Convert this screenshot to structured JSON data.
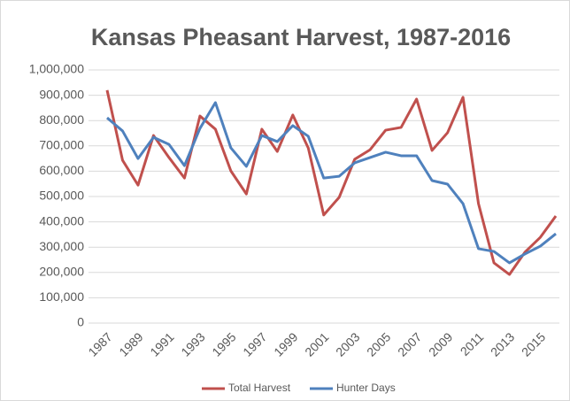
{
  "chart_data": {
    "type": "line",
    "title": "Kansas Pheasant Harvest, 1987-2016",
    "x": [
      1987,
      1988,
      1989,
      1990,
      1991,
      1992,
      1993,
      1994,
      1995,
      1996,
      1997,
      1998,
      1999,
      2000,
      2001,
      2002,
      2003,
      2004,
      2005,
      2006,
      2007,
      2008,
      2009,
      2010,
      2011,
      2012,
      2013,
      2014,
      2015,
      2016
    ],
    "series": [
      {
        "name": "Total Harvest",
        "color": "#c0504d",
        "values": [
          920000,
          643000,
          545000,
          741000,
          654000,
          573000,
          818000,
          766000,
          601000,
          510000,
          766000,
          678000,
          822000,
          692000,
          427000,
          497000,
          647000,
          685000,
          762000,
          773000,
          885000,
          682000,
          752000,
          892000,
          472000,
          238000,
          192000,
          280000,
          339000,
          423000
        ]
      },
      {
        "name": "Hunter Days",
        "color": "#4f81bd",
        "values": [
          811000,
          759000,
          650000,
          734000,
          706000,
          622000,
          769000,
          871000,
          692000,
          619000,
          741000,
          717000,
          780000,
          738000,
          573000,
          580000,
          633000,
          654000,
          675000,
          661000,
          661000,
          563000,
          549000,
          472000,
          294000,
          283000,
          238000,
          273000,
          304000,
          353000
        ]
      }
    ],
    "xlim": [
      1987,
      2016
    ],
    "xticks": [
      1987,
      1989,
      1991,
      1993,
      1995,
      1997,
      1999,
      2001,
      2003,
      2005,
      2007,
      2009,
      2011,
      2013,
      2015
    ],
    "ylim": [
      0,
      1000000
    ],
    "yticks": [
      0,
      {
        "value": 100000,
        "label": "100,000"
      },
      {
        "value": 200000,
        "label": "200,000"
      },
      {
        "value": 300000,
        "label": "300,000"
      },
      {
        "value": 400000,
        "label": "400,000"
      },
      {
        "value": 500000,
        "label": "500,000"
      },
      {
        "value": 600000,
        "label": "600,000"
      },
      {
        "value": 700000,
        "label": "700,000"
      },
      {
        "value": 800000,
        "label": "800,000"
      },
      {
        "value": 900000,
        "label": "900,000"
      },
      {
        "value": 1000000,
        "label": "1,000,000"
      }
    ],
    "grid": true,
    "legend": "bottom"
  }
}
